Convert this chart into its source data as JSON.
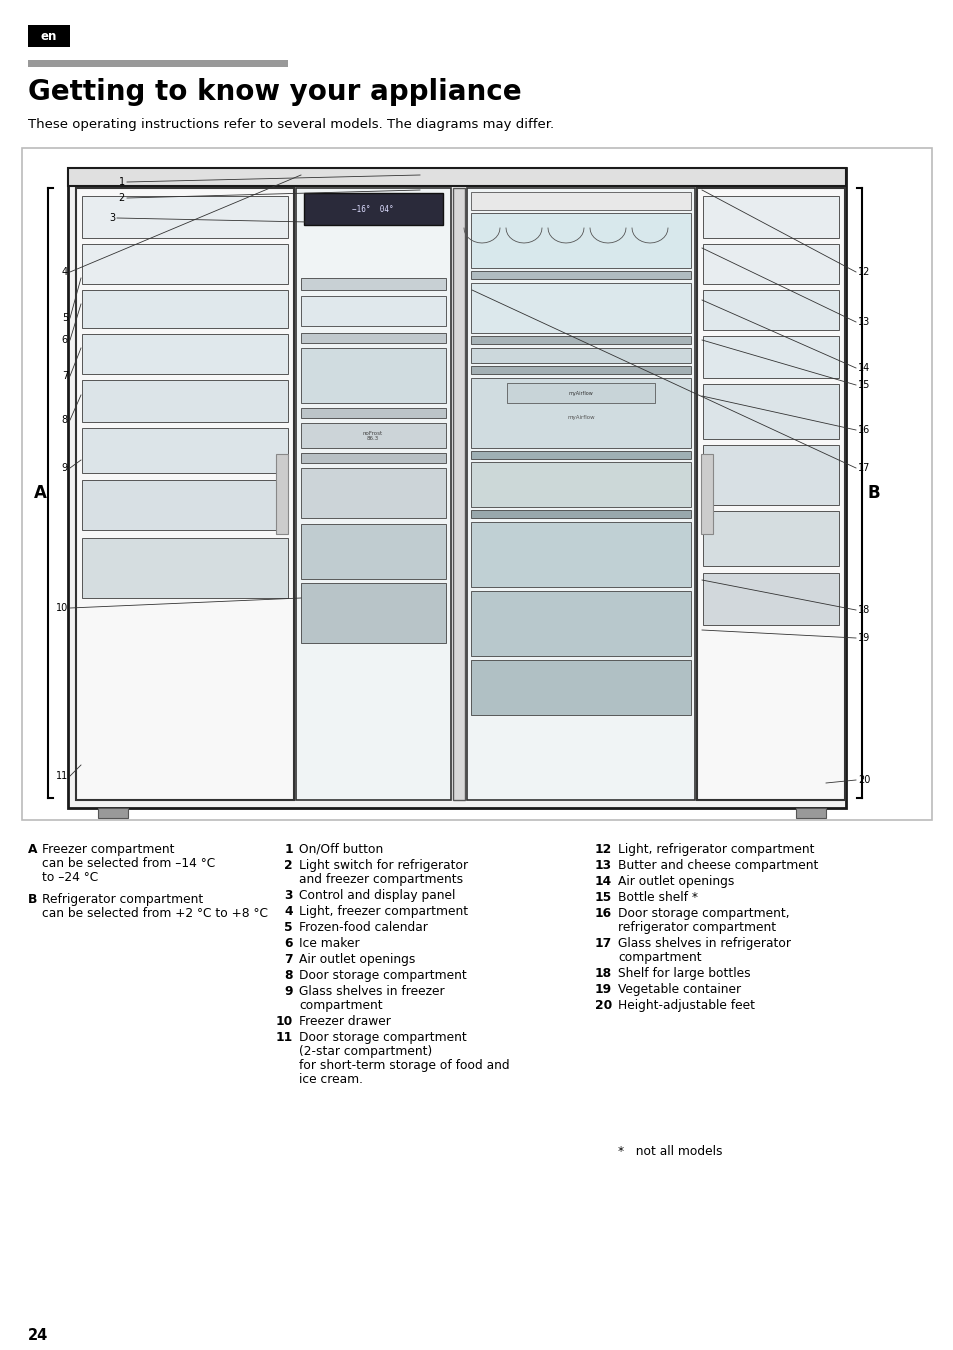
{
  "page_bg": "#ffffff",
  "en_badge_color": "#000000",
  "en_badge_text_color": "#ffffff",
  "en_badge_text": "en",
  "gray_bar_color": "#999999",
  "title": "Getting to know your appliance",
  "subtitle": "These operating instructions refer to several models. The diagrams may differ.",
  "title_fontsize": 20,
  "subtitle_fontsize": 9.5,
  "page_number": "24",
  "legend_col2": [
    [
      "1",
      "On/Off button"
    ],
    [
      "2",
      "Light switch for refrigerator\nand freezer compartments"
    ],
    [
      "3",
      "Control and display panel"
    ],
    [
      "4",
      "Light, freezer compartment"
    ],
    [
      "5",
      "Frozen-food calendar"
    ],
    [
      "6",
      "Ice maker"
    ],
    [
      "7",
      "Air outlet openings"
    ],
    [
      "8",
      "Door storage compartment"
    ],
    [
      "9",
      "Glass shelves in freezer\ncompartment"
    ],
    [
      "10",
      "Freezer drawer"
    ],
    [
      "11",
      "Door storage compartment\n(2-star compartment)\nfor short-term storage of food and\nice cream."
    ]
  ],
  "legend_col3": [
    [
      "12",
      "Light, refrigerator compartment"
    ],
    [
      "13",
      "Butter and cheese compartment"
    ],
    [
      "14",
      "Air outlet openings"
    ],
    [
      "15",
      "Bottle shelf *"
    ],
    [
      "16",
      "Door storage compartment,\nrefrigerator compartment"
    ],
    [
      "17",
      "Glass shelves in refrigerator\ncompartment"
    ],
    [
      "18",
      "Shelf for large bottles"
    ],
    [
      "19",
      "Vegetable container"
    ],
    [
      "20",
      "Height-adjustable feet"
    ]
  ],
  "footnote": "*   not all models"
}
